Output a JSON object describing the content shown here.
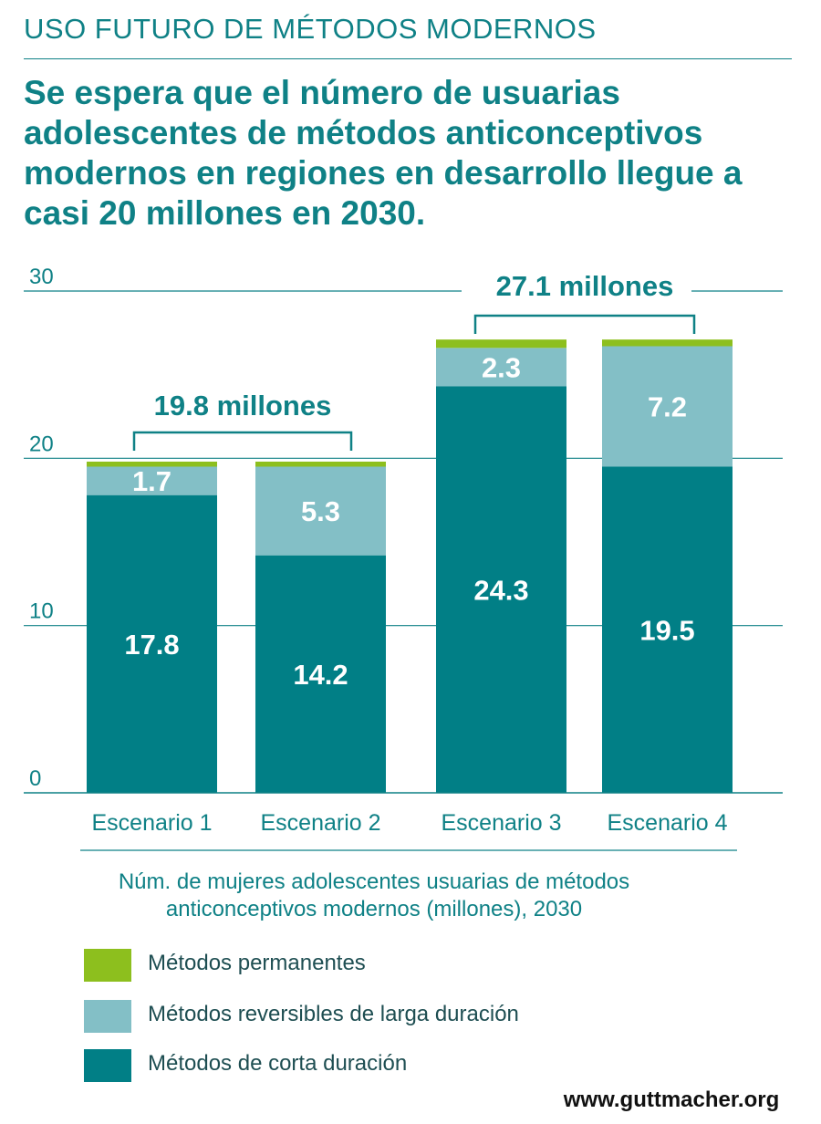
{
  "header": {
    "kicker": "USO FUTURO DE MÉTODOS MODERNOS",
    "headline": "Se espera que el número de usuarias adolescentes de métodos anticonceptivos modernos en regiones en desarrollo llegue a casi 20 millones en 2030."
  },
  "chart_data": {
    "type": "bar",
    "stacked": true,
    "categories": [
      "Escenario 1",
      "Escenario 2",
      "Escenario 3",
      "Escenario 4"
    ],
    "series": [
      {
        "name": "Métodos de corta duración",
        "values": [
          17.8,
          14.2,
          24.3,
          19.5
        ],
        "color": "#017f86"
      },
      {
        "name": "Métodos reversibles de larga duración",
        "values": [
          1.7,
          5.3,
          2.3,
          7.2
        ],
        "color": "#83bfc6"
      },
      {
        "name": "Métodos permanentes",
        "values": [
          0.3,
          0.3,
          0.5,
          0.4
        ],
        "color": "#8dbf1e"
      }
    ],
    "data_labels": [
      [
        "17.8",
        "14.2",
        "24.3",
        "19.5"
      ],
      [
        "1.7",
        "5.3",
        "2.3",
        "7.2"
      ]
    ],
    "ylim": [
      0,
      30
    ],
    "yticks": [
      "0",
      "10",
      "20",
      "30"
    ],
    "grid": true,
    "annotations": [
      {
        "text": "19.8 millones",
        "categories": [
          0,
          1
        ],
        "value": 19.8
      },
      {
        "text": "27.1 millones",
        "categories": [
          2,
          3
        ],
        "value": 27.1
      }
    ],
    "xlabel": [
      "Núm. de mujeres adolescentes usuarias de métodos",
      "anticonceptivos modernos (millones), 2030"
    ],
    "legend_position": "bottom"
  },
  "legend": [
    {
      "label": "Métodos permanentes",
      "color": "#8dbf1e"
    },
    {
      "label": "Métodos reversibles de larga duración",
      "color": "#83bfc6"
    },
    {
      "label": "Métodos de corta duración",
      "color": "#017f86"
    }
  ],
  "footer": {
    "url": "www.guttmacher.org"
  },
  "colors": {
    "accent": "#0f8186",
    "grid": "#0f8186",
    "bar_label": "#ffffff"
  }
}
